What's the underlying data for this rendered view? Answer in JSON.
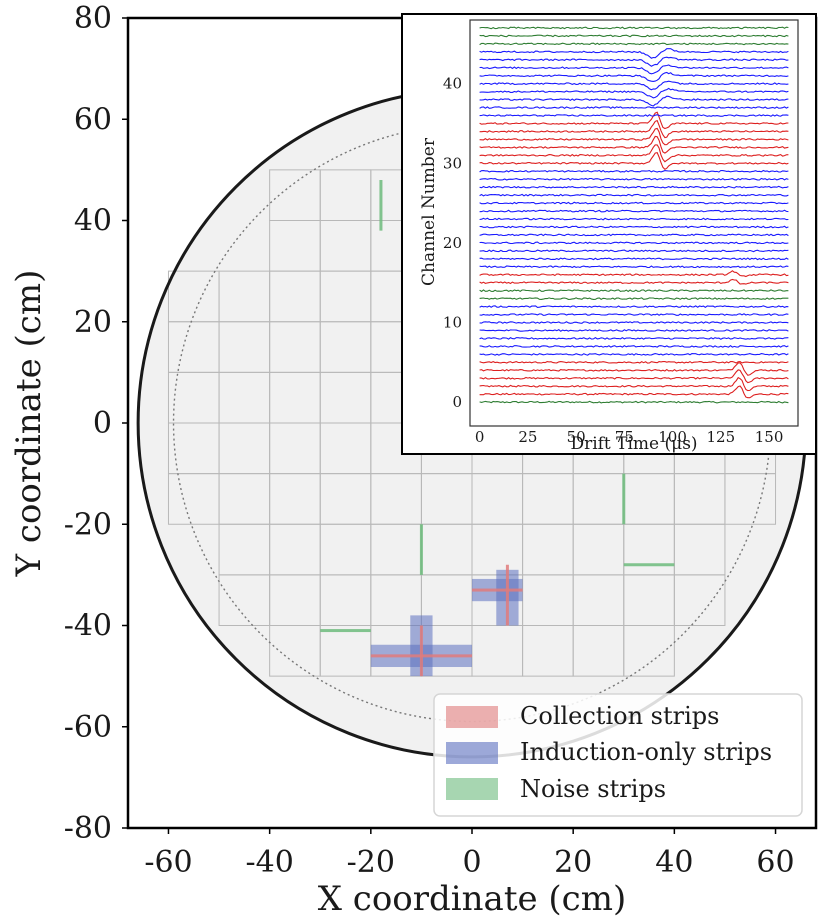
{
  "chart_data": [
    {
      "type": "scatter",
      "xlabel": "X coordinate (cm)",
      "ylabel": "Y coordinate (cm)",
      "xlim": [
        -68,
        68
      ],
      "ylim": [
        -80,
        80
      ],
      "xticks": [
        -60,
        -40,
        -20,
        0,
        20,
        40,
        60
      ],
      "yticks": [
        80,
        60,
        40,
        20,
        0,
        -20,
        -40,
        -60,
        -80
      ],
      "xtick_labels": [
        "-60",
        "-40",
        "-20",
        "0",
        "20",
        "40",
        "60"
      ],
      "ytick_labels": [
        "80",
        "60",
        "40",
        "20",
        "0",
        "-20",
        "-40",
        "-60",
        "-80"
      ],
      "legend": {
        "placement": "lower-right",
        "entries": [
          {
            "label": "Collection strips",
            "color": "#e07b7b"
          },
          {
            "label": "Induction-only strips",
            "color": "#5b6fc0"
          },
          {
            "label": "Noise strips",
            "color": "#6dbb7d"
          }
        ]
      },
      "colors": {
        "collection": "#e07b7b",
        "induction": "#5b6fc0",
        "noise": "#6dbb7d",
        "disk_fill": "#f1f1f1",
        "grid": "#b8b8b8"
      },
      "detector": {
        "outer_radius": 66,
        "inner_dotted_radius": 59,
        "tile_size": 10,
        "tile_grid": [
          {
            "y": [
              30,
              50
            ],
            "x": [
              -40,
              30
            ]
          },
          {
            "y": [
              -20,
              30
            ],
            "x": [
              -60,
              60
            ]
          },
          {
            "y": [
              -40,
              -20
            ],
            "x": [
              -50,
              50
            ]
          },
          {
            "y": [
              -50,
              -40
            ],
            "x": [
              -40,
              40
            ]
          }
        ]
      },
      "strips": {
        "collection": [
          {
            "orientation": "h",
            "x": [
              -20,
              0
            ],
            "y": -46
          },
          {
            "orientation": "v",
            "x": -10,
            "y": [
              -50,
              -40
            ]
          },
          {
            "orientation": "h",
            "x": [
              0,
              10
            ],
            "y": -33
          },
          {
            "orientation": "v",
            "x": 7,
            "y": [
              -40,
              -28
            ]
          }
        ],
        "induction": [
          {
            "orientation": "h",
            "x": [
              -20,
              0
            ],
            "y": -46,
            "width": 4.4
          },
          {
            "orientation": "v",
            "x": -10,
            "y": [
              -50,
              -38
            ],
            "width": 4.4
          },
          {
            "orientation": "h",
            "x": [
              0,
              10
            ],
            "y": -33,
            "width": 4.4
          },
          {
            "orientation": "v",
            "x": 7,
            "y": [
              -40,
              -29
            ],
            "width": 4.4
          }
        ],
        "noise": [
          {
            "orientation": "v",
            "x": -18,
            "y": [
              38,
              48
            ]
          },
          {
            "orientation": "v",
            "x": -10,
            "y": [
              -30,
              -20
            ]
          },
          {
            "orientation": "v",
            "x": 30,
            "y": [
              -20,
              -10
            ]
          },
          {
            "orientation": "h",
            "x": [
              30,
              40
            ],
            "y": -28
          },
          {
            "orientation": "h",
            "x": [
              -30,
              -20
            ],
            "y": -41
          }
        ]
      }
    },
    {
      "type": "line",
      "xlabel": "Drift Time (μs)",
      "ylabel": "Channel Number",
      "xlim": [
        -5,
        165
      ],
      "ylim": [
        -3,
        48
      ],
      "xticks": [
        0,
        25,
        50,
        75,
        100,
        125,
        150
      ],
      "yticks": [
        0,
        10,
        20,
        30,
        40
      ],
      "xtick_labels": [
        "0",
        "25",
        "50",
        "75",
        "100",
        "125",
        "150"
      ],
      "ytick_labels": [
        "0",
        "10",
        "20",
        "30",
        "40"
      ],
      "channel_groups": [
        {
          "channels": [
            0,
            0
          ],
          "kind": "noise",
          "color": "#2e7d32"
        },
        {
          "channels": [
            1,
            5
          ],
          "kind": "collection",
          "color": "#dd2020"
        },
        {
          "channels": [
            6,
            12
          ],
          "kind": "induction",
          "color": "#1a1aff"
        },
        {
          "channels": [
            13,
            14
          ],
          "kind": "noise",
          "color": "#2e7d32"
        },
        {
          "channels": [
            15,
            16
          ],
          "kind": "collection",
          "color": "#dd2020"
        },
        {
          "channels": [
            17,
            29
          ],
          "kind": "induction",
          "color": "#1a1aff"
        },
        {
          "channels": [
            30,
            35
          ],
          "kind": "collection",
          "color": "#dd2020"
        },
        {
          "channels": [
            36,
            44
          ],
          "kind": "induction",
          "color": "#1a1aff"
        },
        {
          "channels": [
            45,
            47
          ],
          "kind": "noise",
          "color": "#2e7d32"
        }
      ],
      "pulses": [
        {
          "channels": [
            1,
            4
          ],
          "time": 135,
          "amplitude": 2.4
        },
        {
          "channels": [
            15,
            16
          ],
          "time": 132,
          "amplitude": 1.0
        },
        {
          "channels": [
            30,
            35
          ],
          "time": 92,
          "amplitude": 3.2
        },
        {
          "channels": [
            38,
            44
          ],
          "time": 92,
          "amplitude": -1.4
        }
      ]
    }
  ]
}
